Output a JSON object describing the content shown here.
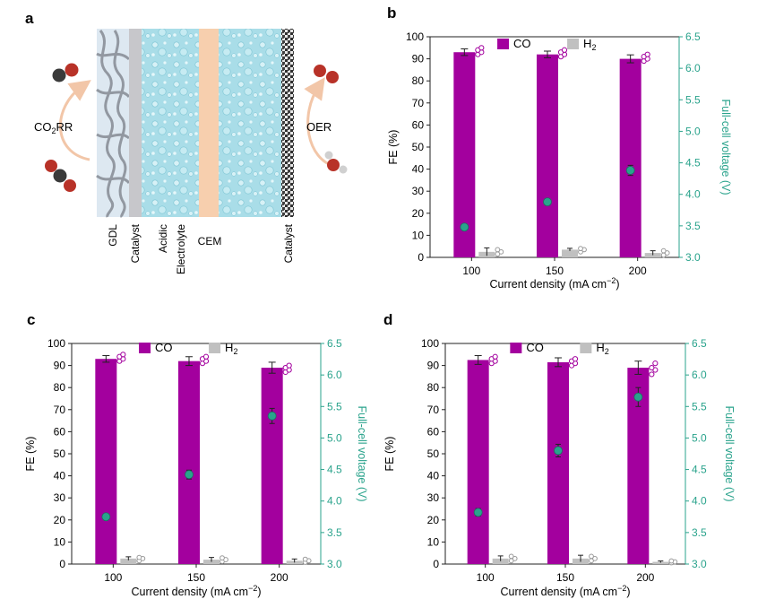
{
  "schematic": {
    "panel_label": "a",
    "left_process": "CO",
    "left_process_sub": "2",
    "left_process_suffix": "RR",
    "right_process": "OER",
    "layer_labels": [
      "GDL",
      "Catalyst",
      "Acidic",
      "Electrolyte",
      "CEM",
      "Catalyst"
    ]
  },
  "colors": {
    "co": "#a3009e",
    "h2": "#c0c0c0",
    "voltage": "#2aa38c",
    "voltage_axis": "#2aa38c",
    "gdl_bg": "#dde8f1",
    "gdl_fiber": "#8a9099",
    "catalyst": "#c7c7cb",
    "electrolyte": "#a9dde8",
    "cem": "#f7cfae",
    "right_catalyst": "#3a3a3a",
    "oxygen": "#b83228",
    "carbon": "#3a3a3a",
    "hydrogen": "#d0d0d0",
    "arrow": "#f2c6a8"
  },
  "chart_data": [
    {
      "panel_label": "b",
      "type": "bar",
      "categories": [
        "100",
        "150",
        "200"
      ],
      "series": [
        {
          "name": "CO",
          "values": [
            93,
            92,
            90
          ],
          "errors": [
            1.5,
            1.5,
            1.8
          ],
          "points": [
            [
              92,
              93,
              94,
              95
            ],
            [
              91,
              92,
              93,
              94
            ],
            [
              89,
              90,
              91,
              92
            ]
          ]
        },
        {
          "name": "H",
          "name_sub": "2",
          "values": [
            2.5,
            3.5,
            2
          ],
          "errors": [
            1.8,
            0.6,
            1.0
          ],
          "points": [
            [
              1.5,
              2.5,
              3.5
            ],
            [
              2.5,
              3.5,
              4
            ],
            [
              1,
              2,
              3
            ]
          ]
        }
      ],
      "voltage": {
        "values": [
          3.48,
          3.88,
          4.38
        ],
        "errors": [
          0.02,
          0.05,
          0.08
        ]
      },
      "xlabel": "Current density (mA cm",
      "xlabel_sup": "−2",
      "xlabel_end": ")",
      "ylabel": "FE (%)",
      "y2label": "Full-cell voltage (V)",
      "ylim": [
        0,
        100
      ],
      "y2lim": [
        3.0,
        6.5
      ],
      "yticks": [
        "0",
        "10",
        "20",
        "30",
        "40",
        "50",
        "60",
        "70",
        "80",
        "90",
        "100"
      ],
      "y2ticks": [
        "3.0",
        "3.5",
        "4.0",
        "4.5",
        "5.0",
        "5.5",
        "6.0",
        "6.5"
      ],
      "legend": [
        "CO",
        "H"
      ]
    },
    {
      "panel_label": "c",
      "type": "bar",
      "categories": [
        "100",
        "150",
        "200"
      ],
      "series": [
        {
          "name": "CO",
          "values": [
            93,
            92,
            89
          ],
          "errors": [
            1.5,
            2.0,
            2.5
          ],
          "points": [
            [
              92,
              93,
              94,
              95
            ],
            [
              91,
              92,
              93,
              94
            ],
            [
              87,
              88,
              89,
              90
            ]
          ]
        },
        {
          "name": "H",
          "name_sub": "2",
          "values": [
            2.5,
            2,
            1.5
          ],
          "errors": [
            0.8,
            1.0,
            0.8
          ],
          "points": [
            [
              1.5,
              2.5,
              3
            ],
            [
              1.2,
              2,
              2.8
            ],
            [
              0.8,
              1.5,
              2.2
            ]
          ]
        }
      ],
      "voltage": {
        "values": [
          3.75,
          4.42,
          5.35
        ],
        "errors": [
          0.03,
          0.07,
          0.12
        ]
      },
      "xlabel": "Current density (mA cm",
      "xlabel_sup": "−2",
      "xlabel_end": ")",
      "ylabel": "FE (%)",
      "y2label": "Full-cell voltage (V)",
      "ylim": [
        0,
        100
      ],
      "y2lim": [
        3.0,
        6.5
      ],
      "yticks": [
        "0",
        "10",
        "20",
        "30",
        "40",
        "50",
        "60",
        "70",
        "80",
        "90",
        "100"
      ],
      "y2ticks": [
        "3.0",
        "3.5",
        "4.0",
        "4.5",
        "5.0",
        "5.5",
        "6.0",
        "6.5"
      ],
      "legend": [
        "CO",
        "H"
      ]
    },
    {
      "panel_label": "d",
      "type": "bar",
      "categories": [
        "100",
        "150",
        "200"
      ],
      "series": [
        {
          "name": "CO",
          "values": [
            92.5,
            91.5,
            89
          ],
          "errors": [
            2.0,
            2.0,
            3.0
          ],
          "points": [
            [
              91,
              92,
              93,
              94
            ],
            [
              90,
              91,
              92,
              93
            ],
            [
              86,
              88,
              89,
              91
            ]
          ]
        },
        {
          "name": "H",
          "name_sub": "2",
          "values": [
            2.5,
            2.5,
            1
          ],
          "errors": [
            1.2,
            1.5,
            0.4
          ],
          "points": [
            [
              1.5,
              2.5,
              3.5
            ],
            [
              1.5,
              2.5,
              3.5
            ],
            [
              0.6,
              1,
              1.4
            ]
          ]
        }
      ],
      "voltage": {
        "values": [
          3.82,
          4.8,
          5.65
        ],
        "errors": [
          0.06,
          0.1,
          0.15
        ]
      },
      "xlabel": "Current density (mA cm",
      "xlabel_sup": "−2",
      "xlabel_end": ")",
      "ylabel": "FE (%)",
      "y2label": "Full-cell voltage (V)",
      "ylim": [
        0,
        100
      ],
      "y2lim": [
        3.0,
        6.5
      ],
      "yticks": [
        "0",
        "10",
        "20",
        "30",
        "40",
        "50",
        "60",
        "70",
        "80",
        "90",
        "100"
      ],
      "y2ticks": [
        "3.0",
        "3.5",
        "4.0",
        "4.5",
        "5.0",
        "5.5",
        "6.0",
        "6.5"
      ],
      "legend": [
        "CO",
        "H"
      ]
    }
  ]
}
